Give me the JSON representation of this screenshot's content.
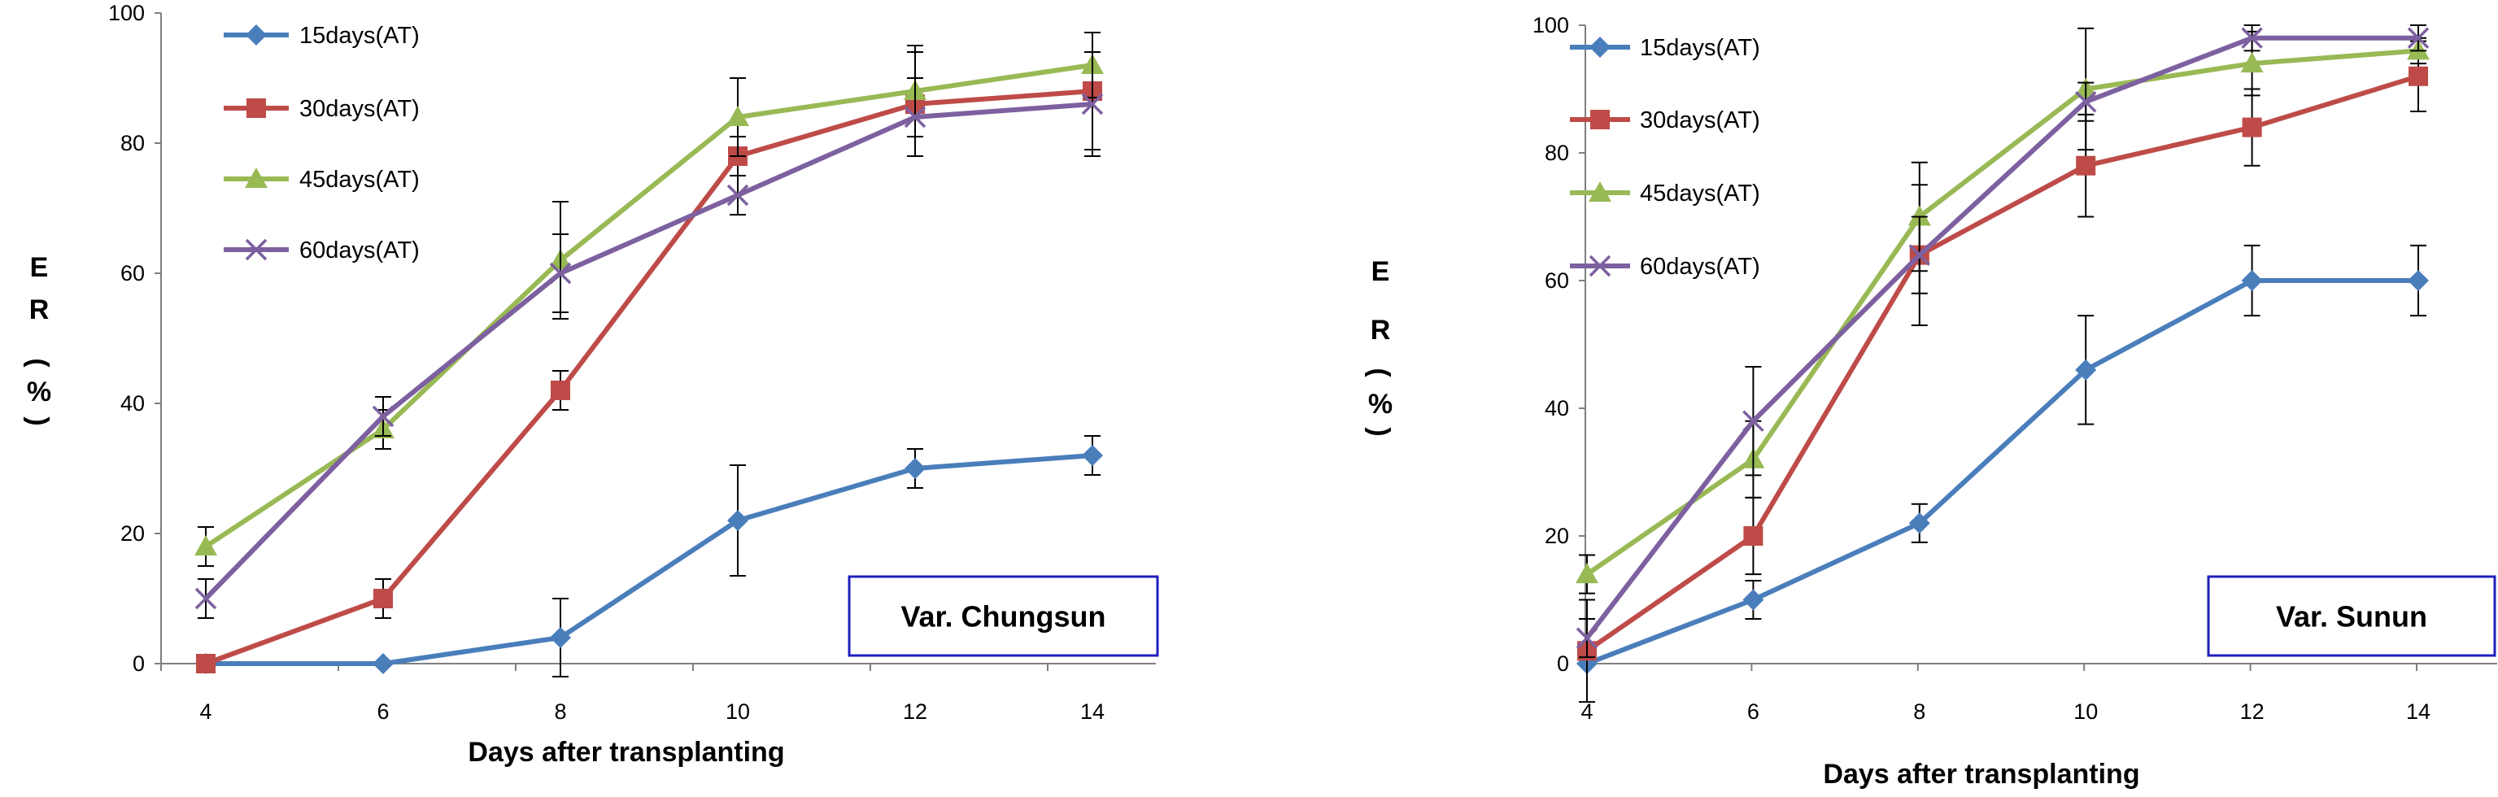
{
  "colors": {
    "s15": "#4A7EBB",
    "s30": "#BE4B48",
    "s45": "#98B954",
    "s60": "#7D60A0",
    "annotation_border": "#1F1FBF"
  },
  "chart_data": [
    {
      "type": "line",
      "annotation": "Var. Chungsun",
      "xlabel": "Days after transplanting",
      "ylabel_parts": [
        "E",
        "R",
        "(",
        "%",
        ")"
      ],
      "x": [
        4,
        6,
        8,
        10,
        12,
        14
      ],
      "x_ticks": [
        "4",
        "6",
        "8",
        "10",
        "12",
        "14"
      ],
      "y_ticks": [
        "0",
        "20",
        "40",
        "60",
        "80",
        "100"
      ],
      "ylim": [
        0,
        100
      ],
      "grid": false,
      "legend_position": "top-left",
      "series": [
        {
          "name": "15days(AT)",
          "color_key": "s15",
          "marker": "diamond",
          "values": [
            0,
            0,
            4,
            22,
            30,
            32
          ],
          "errors": [
            0,
            0,
            6,
            8.5,
            3,
            3
          ]
        },
        {
          "name": "30days(AT)",
          "color_key": "s30",
          "marker": "square",
          "values": [
            0,
            10,
            42,
            78,
            86,
            88
          ],
          "errors": [
            0,
            3,
            3,
            3,
            8,
            9
          ]
        },
        {
          "name": "45days(AT)",
          "color_key": "s45",
          "marker": "triangle",
          "values": [
            18,
            36,
            62,
            84,
            88,
            92
          ],
          "errors": [
            3,
            3,
            9,
            6,
            7,
            5
          ]
        },
        {
          "name": "60days(AT)",
          "color_key": "s60",
          "marker": "cross",
          "values": [
            10,
            38,
            60,
            72,
            84,
            86
          ],
          "errors": [
            3,
            3,
            6,
            3,
            6,
            8
          ]
        }
      ]
    },
    {
      "type": "line",
      "annotation": "Var. Sunun",
      "xlabel": "Days after transplanting",
      "ylabel_parts": [
        "E",
        "R",
        "(",
        "%",
        ")"
      ],
      "x": [
        4,
        6,
        8,
        10,
        12,
        14
      ],
      "x_ticks": [
        "4",
        "6",
        "8",
        "10",
        "12",
        "14"
      ],
      "y_ticks": [
        "0",
        "20",
        "40",
        "60",
        "80",
        "100"
      ],
      "ylim": [
        0,
        100
      ],
      "grid": false,
      "legend_position": "top-left",
      "series": [
        {
          "name": "15days(AT)",
          "color_key": "s15",
          "marker": "diamond",
          "values": [
            0,
            10,
            22,
            46,
            60,
            60
          ],
          "errors": [
            0,
            3,
            3,
            8.5,
            5.5,
            5.5
          ]
        },
        {
          "name": "30days(AT)",
          "color_key": "s30",
          "marker": "square",
          "values": [
            2,
            20,
            64,
            78,
            84,
            92
          ],
          "errors": [
            8,
            6,
            11,
            8,
            6,
            5.5
          ]
        },
        {
          "name": "45days(AT)",
          "color_key": "s45",
          "marker": "triangle",
          "values": [
            14,
            32,
            70,
            90,
            94,
            96
          ],
          "errors": [
            3,
            6,
            8.5,
            9.5,
            5,
            2
          ]
        },
        {
          "name": "60days(AT)",
          "color_key": "s60",
          "marker": "cross",
          "values": [
            4,
            38,
            64,
            88,
            98,
            98
          ],
          "errors": [
            3,
            8.5,
            6,
            3,
            2,
            2
          ]
        }
      ]
    }
  ]
}
